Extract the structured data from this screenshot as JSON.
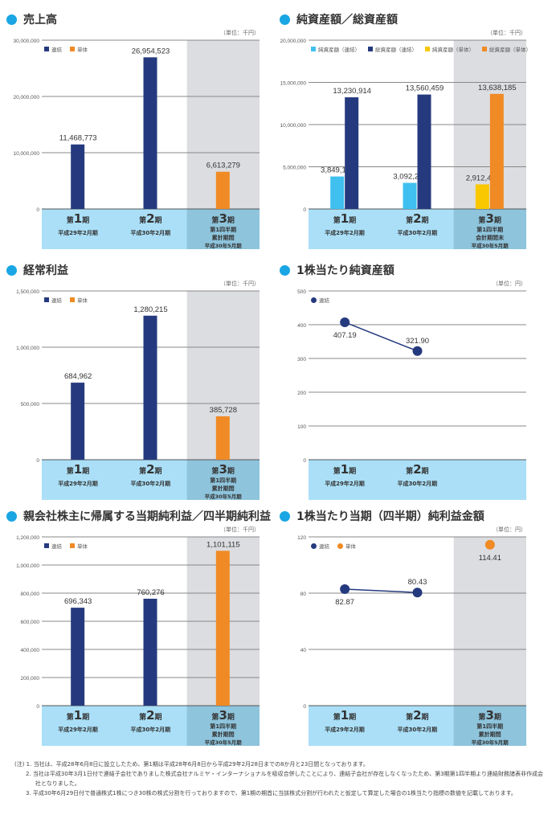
{
  "charts": [
    {
      "type": "bar",
      "title": "売上高",
      "unit": "（単位：千円）",
      "ymax": 30000000,
      "yticks": [
        0,
        10000000,
        20000000,
        30000000
      ],
      "ytick_labels": [
        "0",
        "10,000,000",
        "20,000,000",
        "30,000,000"
      ],
      "highlight_third": true,
      "legend": [
        {
          "label": "連結",
          "color": "#253a7e"
        },
        {
          "label": "単体",
          "color": "#f08a24"
        }
      ],
      "series": [
        {
          "name": "連結",
          "color": "#253a7e",
          "values": [
            11468773,
            26954523,
            null
          ],
          "labels": [
            "11,468,773",
            "26,954,523",
            null
          ]
        },
        {
          "name": "単体",
          "color": "#f08a24",
          "values": [
            null,
            null,
            6613279
          ],
          "labels": [
            null,
            null,
            "6,613,279"
          ]
        }
      ],
      "categories": [
        {
          "pre": "第",
          "num": "1",
          "post": "期",
          "lines": [
            "平成29年2月期"
          ]
        },
        {
          "pre": "第",
          "num": "2",
          "post": "期",
          "lines": [
            "平成30年2月期"
          ]
        },
        {
          "pre": "第",
          "num": "3",
          "post": "期",
          "lines": [
            "第1四半期",
            "累計期間",
            "平成30年5月期"
          ]
        }
      ]
    },
    {
      "type": "bar",
      "title": "純資産額／総資産額",
      "unit": "（単位：千円）",
      "ymax": 20000000,
      "yticks": [
        0,
        5000000,
        10000000,
        15000000,
        20000000
      ],
      "ytick_labels": [
        "0",
        "5,000,000",
        "10,000,000",
        "15,000,000",
        "20,000,000"
      ],
      "highlight_third": true,
      "legend": [
        {
          "label": "純資産額（連結）",
          "color": "#3fc0ee"
        },
        {
          "label": "総資産額（連結）",
          "color": "#253a7e"
        },
        {
          "label": "純資産額（単体）",
          "color": "#fac800"
        },
        {
          "label": "総資産額（単体）",
          "color": "#f08a24"
        }
      ],
      "series": [
        {
          "name": "純資産額（連結）",
          "color": "#3fc0ee",
          "values": [
            3849135,
            3092236,
            null
          ],
          "labels": [
            "3,849,135",
            "3,092,236",
            null
          ]
        },
        {
          "name": "総資産額（連結）",
          "color": "#253a7e",
          "values": [
            13230914,
            13560459,
            null
          ],
          "labels": [
            "13,230,914",
            "13,560,459",
            null
          ]
        },
        {
          "name": "純資産額（単体）",
          "color": "#fac800",
          "values": [
            null,
            null,
            2912499
          ],
          "labels": [
            null,
            null,
            "2,912,499"
          ]
        },
        {
          "name": "総資産額（単体）",
          "color": "#f08a24",
          "values": [
            null,
            null,
            13638185
          ],
          "labels": [
            null,
            null,
            "13,638,185"
          ]
        }
      ],
      "categories": [
        {
          "pre": "第",
          "num": "1",
          "post": "期",
          "lines": [
            "平成29年2月期"
          ]
        },
        {
          "pre": "第",
          "num": "2",
          "post": "期",
          "lines": [
            "平成30年2月期"
          ]
        },
        {
          "pre": "第",
          "num": "3",
          "post": "期",
          "lines": [
            "第1四半期",
            "会計期間末",
            "平成30年5月期"
          ]
        }
      ]
    },
    {
      "type": "bar",
      "title": "経常利益",
      "unit": "（単位：千円）",
      "ymax": 1500000,
      "yticks": [
        0,
        500000,
        1000000,
        1500000
      ],
      "ytick_labels": [
        "0",
        "500,000",
        "1,000,000",
        "1,500,000"
      ],
      "highlight_third": true,
      "legend": [
        {
          "label": "連結",
          "color": "#253a7e"
        },
        {
          "label": "単体",
          "color": "#f08a24"
        }
      ],
      "series": [
        {
          "name": "連結",
          "color": "#253a7e",
          "values": [
            684962,
            1280215,
            null
          ],
          "labels": [
            "684,962",
            "1,280,215",
            null
          ]
        },
        {
          "name": "単体",
          "color": "#f08a24",
          "values": [
            null,
            null,
            385728
          ],
          "labels": [
            null,
            null,
            "385,728"
          ]
        }
      ],
      "categories": [
        {
          "pre": "第",
          "num": "1",
          "post": "期",
          "lines": [
            "平成29年2月期"
          ]
        },
        {
          "pre": "第",
          "num": "2",
          "post": "期",
          "lines": [
            "平成30年2月期"
          ]
        },
        {
          "pre": "第",
          "num": "3",
          "post": "期",
          "lines": [
            "第1四半期",
            "累計期間",
            "平成30年5月期"
          ]
        }
      ]
    },
    {
      "type": "line",
      "title": "1株当たり純資産額",
      "unit": "（単位：円）",
      "ymax": 500,
      "yticks": [
        0,
        100,
        200,
        300,
        400,
        500
      ],
      "ytick_labels": [
        "0",
        "100",
        "200",
        "300",
        "400",
        "500"
      ],
      "highlight_third": false,
      "legend": [
        {
          "label": "連結",
          "color": "#253a7e"
        }
      ],
      "series": [
        {
          "name": "連結",
          "color": "#253a7e",
          "values": [
            407.19,
            321.9,
            null
          ],
          "labels": [
            "407.19",
            "321.90",
            null
          ]
        }
      ],
      "categories": [
        {
          "pre": "第",
          "num": "1",
          "post": "期",
          "lines": [
            "平成29年2月期"
          ]
        },
        {
          "pre": "第",
          "num": "2",
          "post": "期",
          "lines": [
            "平成30年2月期"
          ]
        }
      ]
    },
    {
      "type": "bar",
      "title": "親会社株主に帰属する当期純利益／四半期純利益",
      "unit": "（単位：千円）",
      "ymax": 1200000,
      "yticks": [
        0,
        200000,
        400000,
        600000,
        800000,
        1000000,
        1200000
      ],
      "ytick_labels": [
        "0",
        "200,000",
        "400,000",
        "600,000",
        "800,000",
        "1,000,000",
        "1,200,000"
      ],
      "highlight_third": true,
      "legend": [
        {
          "label": "連結",
          "color": "#253a7e"
        },
        {
          "label": "単体",
          "color": "#f08a24"
        }
      ],
      "series": [
        {
          "name": "連結",
          "color": "#253a7e",
          "values": [
            696343,
            760276,
            null
          ],
          "labels": [
            "696,343",
            "760,276",
            null
          ]
        },
        {
          "name": "単体",
          "color": "#f08a24",
          "values": [
            null,
            null,
            1101115
          ],
          "labels": [
            null,
            null,
            "1,101,115"
          ]
        }
      ],
      "categories": [
        {
          "pre": "第",
          "num": "1",
          "post": "期",
          "lines": [
            "平成29年2月期"
          ]
        },
        {
          "pre": "第",
          "num": "2",
          "post": "期",
          "lines": [
            "平成30年2月期"
          ]
        },
        {
          "pre": "第",
          "num": "3",
          "post": "期",
          "lines": [
            "第1四半期",
            "累計期間",
            "平成30年5月期"
          ]
        }
      ]
    },
    {
      "type": "line",
      "title": "1株当たり当期（四半期）純利益金額",
      "unit": "（単位：円）",
      "ymax": 120,
      "yticks": [
        0,
        40,
        80,
        120
      ],
      "ytick_labels": [
        "0",
        "40",
        "80",
        "120"
      ],
      "highlight_third": true,
      "legend": [
        {
          "label": "連結",
          "color": "#253a7e"
        },
        {
          "label": "単体",
          "color": "#f08a24"
        }
      ],
      "series": [
        {
          "name": "連結",
          "color": "#253a7e",
          "values": [
            82.87,
            80.43,
            null
          ],
          "labels": [
            "82.87",
            "80.43",
            null
          ]
        },
        {
          "name": "単体",
          "color": "#f08a24",
          "values": [
            null,
            null,
            114.41
          ],
          "labels": [
            null,
            null,
            "114.41"
          ]
        }
      ],
      "categories": [
        {
          "pre": "第",
          "num": "1",
          "post": "期",
          "lines": [
            "平成29年2月期"
          ]
        },
        {
          "pre": "第",
          "num": "2",
          "post": "期",
          "lines": [
            "平成30年2月期"
          ]
        },
        {
          "pre": "第",
          "num": "3",
          "post": "期",
          "lines": [
            "第1四半期",
            "累計期間",
            "平成30年5月期"
          ]
        }
      ]
    }
  ],
  "chart_data": [
    {
      "type": "bar",
      "title": "売上高",
      "categories": [
        "第1期",
        "第2期",
        "第3期第1四半期"
      ],
      "series": [
        {
          "name": "連結",
          "values": [
            11468773,
            26954523,
            null
          ]
        },
        {
          "name": "単体",
          "values": [
            null,
            null,
            6613279
          ]
        }
      ],
      "ylim": [
        0,
        30000000
      ],
      "ylabel": "千円"
    },
    {
      "type": "bar",
      "title": "純資産額／総資産額",
      "categories": [
        "第1期",
        "第2期",
        "第3期第1四半期"
      ],
      "series": [
        {
          "name": "純資産額（連結）",
          "values": [
            3849135,
            3092236,
            null
          ]
        },
        {
          "name": "総資産額（連結）",
          "values": [
            13230914,
            13560459,
            null
          ]
        },
        {
          "name": "純資産額（単体）",
          "values": [
            null,
            null,
            2912499
          ]
        },
        {
          "name": "総資産額（単体）",
          "values": [
            null,
            null,
            13638185
          ]
        }
      ],
      "ylim": [
        0,
        20000000
      ],
      "ylabel": "千円"
    },
    {
      "type": "bar",
      "title": "経常利益",
      "categories": [
        "第1期",
        "第2期",
        "第3期第1四半期"
      ],
      "series": [
        {
          "name": "連結",
          "values": [
            684962,
            1280215,
            null
          ]
        },
        {
          "name": "単体",
          "values": [
            null,
            null,
            385728
          ]
        }
      ],
      "ylim": [
        0,
        1500000
      ],
      "ylabel": "千円"
    },
    {
      "type": "line",
      "title": "1株当たり純資産額",
      "categories": [
        "第1期",
        "第2期"
      ],
      "series": [
        {
          "name": "連結",
          "values": [
            407.19,
            321.9
          ]
        }
      ],
      "ylim": [
        0,
        500
      ],
      "ylabel": "円"
    },
    {
      "type": "bar",
      "title": "親会社株主に帰属する当期純利益／四半期純利益",
      "categories": [
        "第1期",
        "第2期",
        "第3期第1四半期"
      ],
      "series": [
        {
          "name": "連結",
          "values": [
            696343,
            760276,
            null
          ]
        },
        {
          "name": "単体",
          "values": [
            null,
            null,
            1101115
          ]
        }
      ],
      "ylim": [
        0,
        1200000
      ],
      "ylabel": "千円"
    },
    {
      "type": "line",
      "title": "1株当たり当期（四半期）純利益金額",
      "categories": [
        "第1期",
        "第2期",
        "第3期第1四半期"
      ],
      "series": [
        {
          "name": "連結",
          "values": [
            82.87,
            80.43,
            null
          ]
        },
        {
          "name": "単体",
          "values": [
            null,
            null,
            114.41
          ]
        }
      ],
      "ylim": [
        0,
        120
      ],
      "ylabel": "円"
    }
  ],
  "notes": [
    "(注) 1. 当社は、平成28年6月8日に設立したため、第1期は平成28年6月8日から平成29年2月28日までの8か月と23日間となっております。",
    "2. 当社は平成30年3月1日付で連結子会社でありました株式会社ナルミヤ・インターナショナルを吸収合併したことにより、連結子会社が存在しなくなったため、第3期第1四半期より連結財務諸表非作成会社となりました。",
    "3. 平成30年6月29日付で普通株式1株につき30株の株式分割を行っておりますので、第1期の期首に当該株式分割が行われたと仮定して算定した場合の1株当たり指標の数値を記載しております。"
  ]
}
